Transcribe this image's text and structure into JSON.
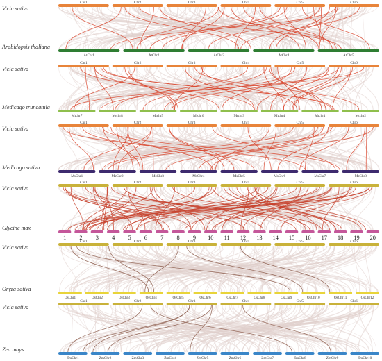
{
  "panels": [
    {
      "top_species": "Vicia sativa",
      "top_chromosomes": [
        "Chr1",
        "Chr2",
        "Chr3",
        "Chr4",
        "Chr5",
        "Chr6"
      ],
      "top_color": "#e8843a",
      "bottom_species": "Arabidopsis thaliana",
      "bottom_chromosomes": [
        "AtChr1",
        "AtChr2",
        "AtChr3",
        "AtChr4",
        "AtChr5"
      ],
      "bottom_color": "#2e7d32",
      "highlight_color": "#d9462e",
      "highlight_links": 26
    },
    {
      "top_species": "Vicia sativa",
      "top_chromosomes": [
        "Chr1",
        "Chr2",
        "Chr3",
        "Chr4",
        "Chr5",
        "Chr6"
      ],
      "top_color": "#e8843a",
      "bottom_species": "Medicago truncatula",
      "bottom_chromosomes": [
        "Mtchr7",
        "Mtchr8",
        "Mtchr5",
        "Mtchr6",
        "Mtchr3",
        "Mtchr4",
        "Mtchr1",
        "Mtchr2"
      ],
      "bottom_color": "#8fbf4d",
      "highlight_color": "#d9462e",
      "highlight_links": 30
    },
    {
      "top_species": "Vicia sativa",
      "top_chromosomes": [
        "Chr1",
        "Chr2",
        "Chr3",
        "Chr4",
        "Chr5",
        "Chr6"
      ],
      "top_color": "#e8843a",
      "bottom_species": "Medicago sativa",
      "bottom_chromosomes": [
        "MsChr1",
        "MsChr2",
        "MsChr3",
        "MsChr4",
        "MsChr5",
        "MsChr6",
        "MsChr7",
        "MsChr8"
      ],
      "bottom_color": "#3d2a6e",
      "highlight_color": "#d9462e",
      "highlight_links": 28
    },
    {
      "top_species": "Vicia sativa",
      "top_chromosomes": [
        "Chr1",
        "Chr2",
        "Chr3",
        "Chr4",
        "Chr5",
        "Chr6"
      ],
      "top_color": "#c9b23a",
      "bottom_species": "Glycine max",
      "bottom_chromosomes": [
        "1",
        "2",
        "3",
        "4",
        "5",
        "6",
        "7",
        "8",
        "9",
        "10",
        "11",
        "12",
        "13",
        "14",
        "15",
        "16",
        "17",
        "18",
        "19",
        "20"
      ],
      "bottom_color": "#c4579a",
      "highlight_color": "#c7402a",
      "highlight_links": 55
    },
    {
      "top_species": "Vicia sativa",
      "top_chromosomes": [
        "Chr1",
        "Chr2",
        "Chr3",
        "Chr4",
        "Chr5",
        "Chr6"
      ],
      "top_color": "#c9b23a",
      "bottom_species": "Oryza sativa",
      "bottom_chromosomes": [
        "OsChr1",
        "OsChr2",
        "OsChr3",
        "OsChr4",
        "OsChr5",
        "OsChr6",
        "OsChr7",
        "OsChr8",
        "OsChr9",
        "OsChr10",
        "OsChr11",
        "OsChr12"
      ],
      "bottom_color": "#e8d43a",
      "highlight_color": "#8b5a4a",
      "highlight_links": 6
    },
    {
      "top_species": "Vicia sativa",
      "top_chromosomes": [
        "Chr1",
        "Chr2",
        "Chr3",
        "Chr4",
        "Chr5",
        "Chr6"
      ],
      "top_color": "#c9b23a",
      "bottom_species": "Zea mays",
      "bottom_chromosomes": [
        "ZmChr1",
        "ZmChr2",
        "ZmChr3",
        "ZmChr4",
        "ZmChr5",
        "ZmChr6",
        "ZmChr7",
        "ZmChr8",
        "ZmChr9",
        "ZmChr10"
      ],
      "bottom_color": "#3a86c8",
      "highlight_color": "#8b5a4a",
      "highlight_links": 7
    }
  ]
}
